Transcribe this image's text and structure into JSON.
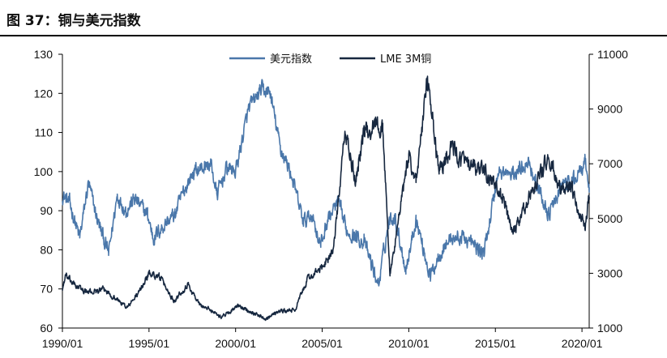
{
  "page": {
    "title": "图 37：铜与美元指数"
  },
  "chart_data": {
    "type": "line",
    "title": "图 37：铜与美元指数",
    "xlabel": "",
    "ylabel_left": "",
    "ylabel_right": "",
    "x_ticks": [
      "1990/01",
      "1995/01",
      "2000/01",
      "2005/01",
      "2010/01",
      "2015/01",
      "2020/01"
    ],
    "y_left_ticks": [
      "60",
      "70",
      "80",
      "90",
      "100",
      "110",
      "120",
      "130"
    ],
    "y_right_ticks": [
      "1000",
      "3000",
      "5000",
      "7000",
      "9000",
      "11000"
    ],
    "y_left_lim": [
      60,
      130
    ],
    "y_right_lim": [
      1000,
      11000
    ],
    "x_lim": [
      "1990/01",
      "2020/06"
    ],
    "legend_position": "top-center",
    "grid": false,
    "colors": {
      "usd_index": "#4a77aa",
      "lme_copper": "#16273f",
      "axis": "#000000"
    },
    "series": [
      {
        "name": "美元指数",
        "axis": "left",
        "points": [
          [
            "1990/01",
            94
          ],
          [
            "1990/06",
            92
          ],
          [
            "1991/01",
            83
          ],
          [
            "1991/07",
            97
          ],
          [
            "1992/01",
            88
          ],
          [
            "1992/09",
            79
          ],
          [
            "1993/03",
            94
          ],
          [
            "1993/09",
            90
          ],
          [
            "1994/03",
            93
          ],
          [
            "1994/12",
            89
          ],
          [
            "1995/04",
            83
          ],
          [
            "1996/01",
            87
          ],
          [
            "1996/07",
            89
          ],
          [
            "1997/01",
            95
          ],
          [
            "1997/08",
            100
          ],
          [
            "1998/02",
            101
          ],
          [
            "1998/08",
            102
          ],
          [
            "1998/12",
            94
          ],
          [
            "1999/07",
            101
          ],
          [
            "2000/01",
            100
          ],
          [
            "2000/10",
            116
          ],
          [
            "2001/07",
            121
          ],
          [
            "2002/01",
            120
          ],
          [
            "2002/08",
            106
          ],
          [
            "2003/03",
            100
          ],
          [
            "2003/12",
            87
          ],
          [
            "2004/06",
            89
          ],
          [
            "2004/12",
            81
          ],
          [
            "2005/05",
            88
          ],
          [
            "2005/12",
            92
          ],
          [
            "2006/06",
            85
          ],
          [
            "2007/06",
            82
          ],
          [
            "2008/04",
            71
          ],
          [
            "2008/11",
            87
          ],
          [
            "2009/03",
            89
          ],
          [
            "2009/11",
            75
          ],
          [
            "2010/06",
            88
          ],
          [
            "2011/04",
            73
          ],
          [
            "2011/10",
            79
          ],
          [
            "2012/06",
            83
          ],
          [
            "2013/04",
            83
          ],
          [
            "2014/05",
            79
          ],
          [
            "2015/03",
            100
          ],
          [
            "2016/01",
            99
          ],
          [
            "2016/12",
            103
          ],
          [
            "2017/06",
            96
          ],
          [
            "2018/02",
            89
          ],
          [
            "2018/12",
            97
          ],
          [
            "2019/06",
            97
          ],
          [
            "2020/03",
            102
          ],
          [
            "2020/06",
            96
          ]
        ]
      },
      {
        "name": "LME 3M铜",
        "axis": "right",
        "points": [
          [
            "1990/01",
            2400
          ],
          [
            "1990/03",
            2900
          ],
          [
            "1990/09",
            2600
          ],
          [
            "1991/06",
            2300
          ],
          [
            "1992/06",
            2400
          ],
          [
            "1993/10",
            1750
          ],
          [
            "1994/06",
            2300
          ],
          [
            "1995/01",
            3000
          ],
          [
            "1995/08",
            2900
          ],
          [
            "1996/06",
            2000
          ],
          [
            "1997/04",
            2600
          ],
          [
            "1997/12",
            1850
          ],
          [
            "1998/10",
            1600
          ],
          [
            "1999/03",
            1400
          ],
          [
            "2000/03",
            1800
          ],
          [
            "2001/10",
            1350
          ],
          [
            "2002/06",
            1600
          ],
          [
            "2003/06",
            1650
          ],
          [
            "2004/03",
            2800
          ],
          [
            "2005/01",
            3200
          ],
          [
            "2005/09",
            3900
          ],
          [
            "2006/05",
            8200
          ],
          [
            "2006/12",
            6300
          ],
          [
            "2007/05",
            8000
          ],
          [
            "2008/02",
            8500
          ],
          [
            "2008/07",
            8300
          ],
          [
            "2008/12",
            2900
          ],
          [
            "2009/06",
            5000
          ],
          [
            "2010/01",
            7300
          ],
          [
            "2010/06",
            6400
          ],
          [
            "2011/02",
            10000
          ],
          [
            "2011/10",
            6700
          ],
          [
            "2012/06",
            7600
          ],
          [
            "2013/06",
            6900
          ],
          [
            "2014/06",
            6700
          ],
          [
            "2015/06",
            5800
          ],
          [
            "2016/01",
            4400
          ],
          [
            "2016/11",
            5600
          ],
          [
            "2018/01",
            7200
          ],
          [
            "2018/10",
            6100
          ],
          [
            "2019/06",
            6000
          ],
          [
            "2020/03",
            4650
          ],
          [
            "2020/06",
            5800
          ]
        ]
      }
    ]
  }
}
